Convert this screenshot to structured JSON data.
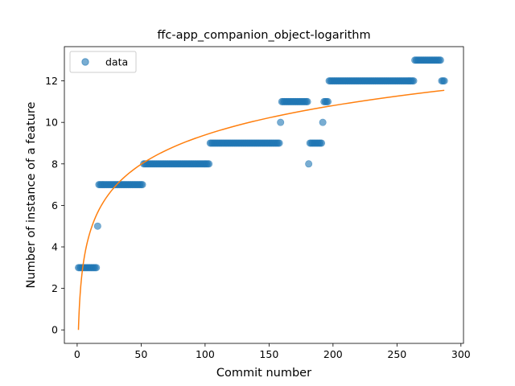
{
  "chart_data": {
    "type": "scatter",
    "title": "ffc-app_companion_object-logarithm",
    "xlabel": "Commit number",
    "ylabel": "Number of instance of a feature",
    "xlim": [
      -10,
      302
    ],
    "ylim": [
      -0.65,
      13.65
    ],
    "xticks": [
      0,
      50,
      100,
      150,
      200,
      250,
      300
    ],
    "yticks": [
      0,
      2,
      4,
      6,
      8,
      10,
      12
    ],
    "grid": false,
    "legend": {
      "placement": "top-left",
      "entries": [
        "data"
      ]
    },
    "colors": {
      "points": "#1f77b4",
      "fit": "#ff7f0e"
    },
    "segments": [
      {
        "x_start": 1,
        "x_end": 15,
        "y": 3
      },
      {
        "x_start": 16,
        "x_end": 16,
        "y": 5
      },
      {
        "x_start": 17,
        "x_end": 51,
        "y": 7
      },
      {
        "x_start": 52,
        "x_end": 103,
        "y": 8
      },
      {
        "x_start": 104,
        "x_end": 158,
        "y": 9
      },
      {
        "x_start": 159,
        "x_end": 159,
        "y": 10
      },
      {
        "x_start": 160,
        "x_end": 180,
        "y": 11
      },
      {
        "x_start": 181,
        "x_end": 181,
        "y": 8
      },
      {
        "x_start": 182,
        "x_end": 191,
        "y": 9
      },
      {
        "x_start": 192,
        "x_end": 192,
        "y": 10
      },
      {
        "x_start": 193,
        "x_end": 196,
        "y": 11
      },
      {
        "x_start": 197,
        "x_end": 263,
        "y": 12
      },
      {
        "x_start": 264,
        "x_end": 284,
        "y": 13
      },
      {
        "x_start": 285,
        "x_end": 287,
        "y": 12
      }
    ],
    "fit": {
      "model": "a + b*ln(x)",
      "a": 0.0,
      "b": 2.04,
      "x_range": [
        1,
        287
      ]
    }
  }
}
